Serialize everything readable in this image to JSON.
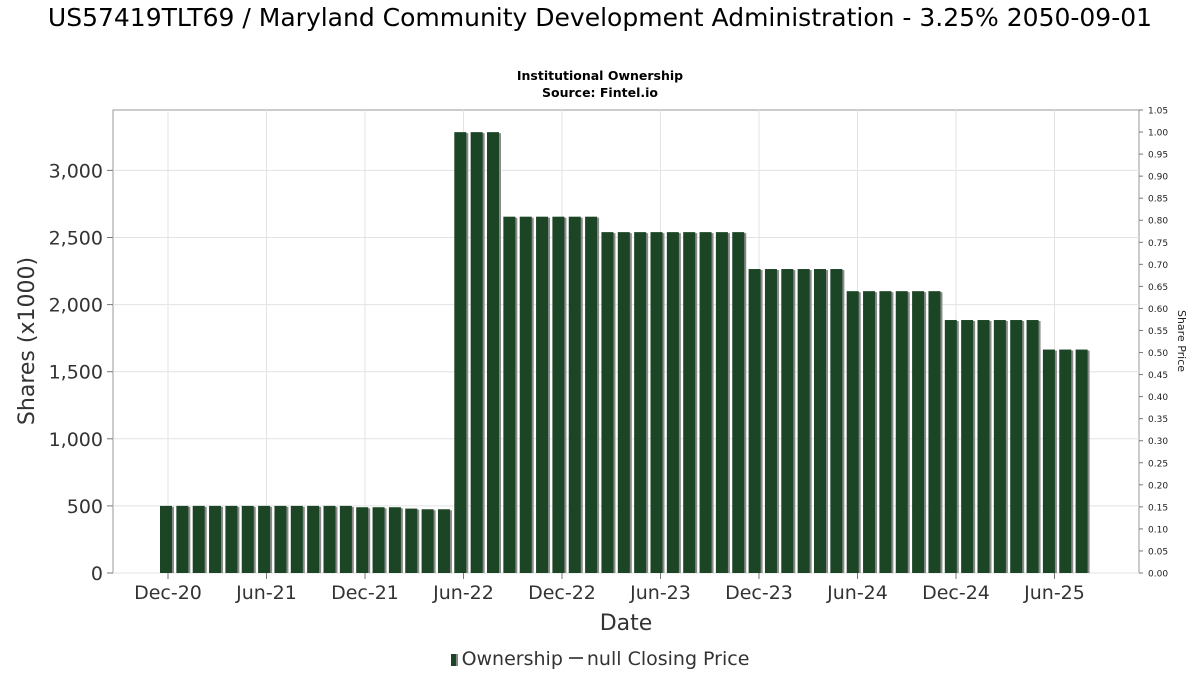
{
  "header": {
    "title": "US57419TLT69 / Maryland Community Development Administration - 3.25% 2050-09-01",
    "subtitle": "Institutional Ownership",
    "source": "Source: Fintel.io"
  },
  "legend": {
    "ownership_label": "Ownership",
    "closing_price_label": "null Closing Price"
  },
  "chart_data": {
    "type": "bar",
    "title": "US57419TLT69 / Maryland Community Development Administration - 3.25% 2050-09-01",
    "subtitle": "Institutional Ownership",
    "xlabel": "Date",
    "ylabel": "Shares (x1000)",
    "y2label": "Share Price",
    "ylim": [
      0,
      3450
    ],
    "y2lim": [
      0,
      1.05
    ],
    "yticks": [
      0,
      500,
      1000,
      1500,
      2000,
      2500,
      3000
    ],
    "ytick_labels": [
      "0",
      "500",
      "1,000",
      "1,500",
      "2,000",
      "2,500",
      "3,000"
    ],
    "y2ticks": [
      "0.00",
      "0.05",
      "0.10",
      "0.15",
      "0.20",
      "0.25",
      "0.30",
      "0.35",
      "0.40",
      "0.45",
      "0.50",
      "0.55",
      "0.60",
      "0.65",
      "0.70",
      "0.75",
      "0.80",
      "0.85",
      "0.90",
      "0.95",
      "1.00",
      "1.05"
    ],
    "xticks": [
      "Dec-20",
      "Jun-21",
      "Dec-21",
      "Jun-22",
      "Dec-22",
      "Jun-23",
      "Dec-23",
      "Jun-24",
      "Dec-24",
      "Jun-25"
    ],
    "grid": true,
    "legend_position": "bottom",
    "bar_color": "#1c4526",
    "series": [
      {
        "name": "Ownership",
        "values": [
          500,
          500,
          500,
          500,
          500,
          500,
          500,
          500,
          500,
          500,
          500,
          500,
          490,
          490,
          490,
          480,
          475,
          475,
          3285,
          3285,
          3285,
          2655,
          2655,
          2655,
          2655,
          2655,
          2655,
          2540,
          2540,
          2540,
          2540,
          2540,
          2540,
          2540,
          2540,
          2540,
          2265,
          2265,
          2265,
          2265,
          2265,
          2265,
          2100,
          2100,
          2100,
          2100,
          2100,
          2100,
          1885,
          1885,
          1885,
          1885,
          1885,
          1885,
          1665,
          1665,
          1665
        ]
      }
    ]
  }
}
